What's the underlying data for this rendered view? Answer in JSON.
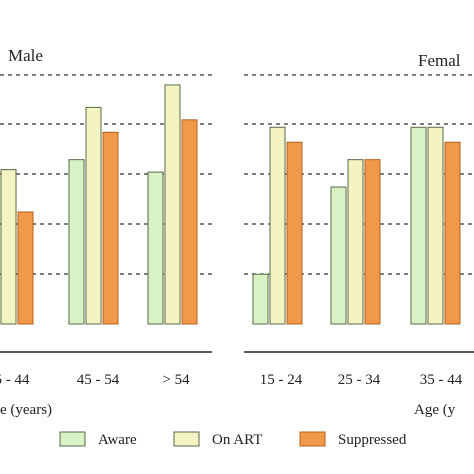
{
  "chart_data": [
    {
      "type": "bar",
      "title": "Male",
      "xlabel": "e (years)",
      "categories": [
        "5 - 44",
        "45 - 54",
        "> 54"
      ],
      "ylim": [
        0,
        100
      ],
      "grid": true,
      "series": [
        {
          "name": "Aware",
          "values": [
            null,
            66,
            61
          ]
        },
        {
          "name": "On ART",
          "values": [
            62,
            87,
            96
          ]
        },
        {
          "name": "Suppressed",
          "values": [
            45,
            77,
            82
          ]
        }
      ]
    },
    {
      "type": "bar",
      "title": "Femal",
      "xlabel": "Age (y",
      "categories": [
        "15 - 24",
        "25 - 34",
        "35 - 44"
      ],
      "ylim": [
        0,
        100
      ],
      "grid": true,
      "series": [
        {
          "name": "Aware",
          "values": [
            20,
            55,
            79
          ]
        },
        {
          "name": "On ART",
          "values": [
            79,
            66,
            79
          ]
        },
        {
          "name": "Suppressed",
          "values": [
            73,
            66,
            73
          ]
        }
      ]
    }
  ],
  "legend": {
    "placement": "bottom",
    "items": [
      {
        "label": "Aware",
        "color": "#d8f2c6"
      },
      {
        "label": "On ART",
        "color": "#f3f4c2"
      },
      {
        "label": "Suppressed",
        "color": "#f1984a"
      }
    ]
  },
  "colors": {
    "aware": "#d8f2c6",
    "on_art": "#f3f4c2",
    "suppressed": "#f1984a",
    "bar_stroke": "#5a6a4a",
    "suppressed_stroke": "#b5621f"
  }
}
